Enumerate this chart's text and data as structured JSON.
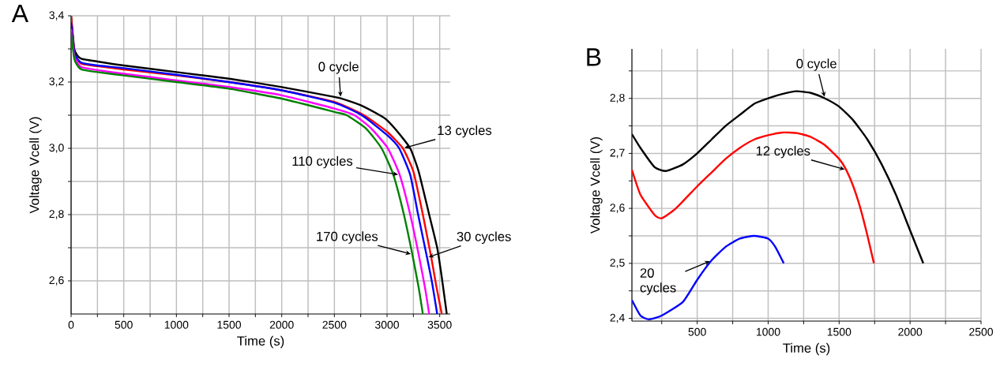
{
  "chart_data": [
    {
      "type": "line",
      "title": "A",
      "xlabel": "Time (s)",
      "ylabel": "Voltage Vcell (V)",
      "grid": true,
      "xlim": [
        0,
        3600
      ],
      "ylim": [
        2.5,
        3.4
      ],
      "xticks": [
        0,
        {
          "value": 250,
          "label": null
        },
        500,
        {
          "value": 750,
          "label": null
        },
        1000,
        {
          "value": 1250,
          "label": null
        },
        1500,
        {
          "value": 1750,
          "label": null
        },
        2000,
        {
          "value": 2250,
          "label": null
        },
        2500,
        {
          "value": 2750,
          "label": null
        },
        3000,
        {
          "value": 3250,
          "label": null
        },
        3500
      ],
      "yticks": [
        {
          "value": 2.6,
          "label": "2,6"
        },
        {
          "value": 2.7,
          "label": null
        },
        {
          "value": 2.8,
          "label": "2,8"
        },
        {
          "value": 2.9,
          "label": null
        },
        {
          "value": 3.0,
          "label": "3,0"
        },
        {
          "value": 3.1,
          "label": null
        },
        {
          "value": 3.2,
          "label": "3,2"
        },
        {
          "value": 3.3,
          "label": null
        },
        {
          "value": 3.4,
          "label": "3,4"
        }
      ],
      "series": [
        {
          "color": "#000000",
          "x": [
            0,
            30,
            60,
            100,
            250,
            500,
            1000,
            1500,
            2000,
            2500,
            2560,
            2750,
            2930,
            3000,
            3100,
            3220,
            3300,
            3400,
            3476,
            3520,
            3567
          ],
          "values": [
            3.4,
            3.3,
            3.28,
            3.27,
            3.262,
            3.25,
            3.23,
            3.21,
            3.185,
            3.155,
            3.151,
            3.13,
            3.1,
            3.085,
            3.05,
            3.0,
            2.93,
            2.8,
            2.7,
            2.61,
            2.5
          ]
        },
        {
          "color": "#ff0000",
          "x": [
            0,
            30,
            60,
            100,
            250,
            500,
            1000,
            1500,
            2000,
            2500,
            2780,
            3000,
            3150,
            3250,
            3340,
            3420,
            3470,
            3520
          ],
          "values": [
            3.4,
            3.29,
            3.268,
            3.255,
            3.248,
            3.238,
            3.22,
            3.2,
            3.175,
            3.14,
            3.1,
            3.05,
            3.0,
            2.93,
            2.8,
            2.67,
            2.58,
            2.5
          ]
        },
        {
          "color": "#0000ff",
          "x": [
            0,
            30,
            60,
            100,
            250,
            500,
            1000,
            1500,
            2000,
            2500,
            2760,
            3000,
            3115,
            3220,
            3295,
            3380,
            3430,
            3476
          ],
          "values": [
            3.38,
            3.29,
            3.27,
            3.258,
            3.25,
            3.242,
            3.222,
            3.2,
            3.175,
            3.138,
            3.1,
            3.04,
            3.0,
            2.92,
            2.8,
            2.67,
            2.59,
            2.5
          ]
        },
        {
          "color": "#ff00ff",
          "x": [
            0,
            30,
            60,
            100,
            250,
            500,
            1000,
            1500,
            2000,
            2500,
            2690,
            2850,
            3008,
            3120,
            3220,
            3300,
            3360,
            3400
          ],
          "values": [
            3.36,
            3.28,
            3.258,
            3.245,
            3.236,
            3.225,
            3.205,
            3.185,
            3.16,
            3.12,
            3.1,
            3.06,
            3.0,
            2.92,
            2.8,
            2.68,
            2.58,
            2.5
          ]
        },
        {
          "color": "#008000",
          "x": [
            0,
            30,
            60,
            100,
            250,
            500,
            1000,
            1500,
            2000,
            2500,
            2616,
            2800,
            2948,
            3060,
            3160,
            3240,
            3300,
            3340
          ],
          "values": [
            3.35,
            3.27,
            3.25,
            3.238,
            3.23,
            3.22,
            3.2,
            3.18,
            3.15,
            3.11,
            3.1,
            3.06,
            3.0,
            2.92,
            2.8,
            2.68,
            2.58,
            2.5
          ]
        }
      ],
      "annotations": [
        {
          "text": "0 cycle",
          "x": 2560,
          "y": 3.151
        },
        {
          "text": "13 cycles",
          "x": 3150,
          "y": 3.0
        },
        {
          "text": "110 cycles",
          "x": 3120,
          "y": 2.92
        },
        {
          "text": "170 cycles",
          "x": 3240,
          "y": 2.68
        },
        {
          "text": "30 cycles",
          "x": 3380,
          "y": 2.67
        }
      ]
    },
    {
      "type": "line",
      "title": "B",
      "xlabel": "Time (s)",
      "ylabel": "Voltage Vcell (V)",
      "grid": true,
      "xlim": [
        40,
        2500
      ],
      "ylim": [
        2.395,
        2.89
      ],
      "xticks": [
        {
          "value": 250,
          "label": null
        },
        500,
        {
          "value": 750,
          "label": null
        },
        1000,
        {
          "value": 1250,
          "label": null
        },
        1500,
        {
          "value": 1750,
          "label": null
        },
        2000,
        {
          "value": 2250,
          "label": null
        },
        2500
      ],
      "yticks": [
        {
          "value": 2.4,
          "label": "2,4"
        },
        {
          "value": 2.45,
          "label": null
        },
        {
          "value": 2.5,
          "label": "2,5"
        },
        {
          "value": 2.55,
          "label": null
        },
        {
          "value": 2.6,
          "label": "2,6"
        },
        {
          "value": 2.65,
          "label": null
        },
        {
          "value": 2.7,
          "label": "2,7"
        },
        {
          "value": 2.75,
          "label": null
        },
        {
          "value": 2.8,
          "label": "2,8"
        },
        {
          "value": 2.85,
          "label": null
        }
      ],
      "series": [
        {
          "color": "#000000",
          "x": [
            40,
            100,
            200,
            280,
            400,
            500,
            600,
            700,
            800,
            900,
            1000,
            1100,
            1200,
            1300,
            1400,
            1500,
            1600,
            1700,
            1800,
            1900,
            2000,
            2093
          ],
          "values": [
            2.735,
            2.71,
            2.675,
            2.668,
            2.68,
            2.7,
            2.725,
            2.75,
            2.77,
            2.79,
            2.8,
            2.808,
            2.813,
            2.81,
            2.8,
            2.785,
            2.76,
            2.725,
            2.68,
            2.625,
            2.56,
            2.5
          ]
        },
        {
          "color": "#ff0000",
          "x": [
            40,
            100,
            200,
            250,
            350,
            500,
            600,
            700,
            800,
            900,
            1000,
            1100,
            1200,
            1300,
            1400,
            1500,
            1550,
            1600,
            1650,
            1700,
            1745
          ],
          "values": [
            2.67,
            2.625,
            2.588,
            2.582,
            2.6,
            2.64,
            2.665,
            2.69,
            2.71,
            2.725,
            2.733,
            2.738,
            2.737,
            2.73,
            2.715,
            2.69,
            2.67,
            2.64,
            2.6,
            2.55,
            2.5
          ]
        },
        {
          "color": "#0000ff",
          "x": [
            40,
            100,
            160,
            250,
            400,
            500,
            600,
            700,
            800,
            900,
            1000,
            1050,
            1110
          ],
          "values": [
            2.433,
            2.405,
            2.398,
            2.405,
            2.43,
            2.47,
            2.505,
            2.53,
            2.545,
            2.55,
            2.545,
            2.53,
            2.5
          ]
        }
      ],
      "annotations": [
        {
          "text": "0 cycle",
          "x": 1400,
          "y": 2.8
        },
        {
          "text": "12 cycles",
          "x": 1550,
          "y": 2.67
        },
        {
          "text": "20 cycles",
          "x": 600,
          "y": 2.505
        }
      ]
    }
  ]
}
